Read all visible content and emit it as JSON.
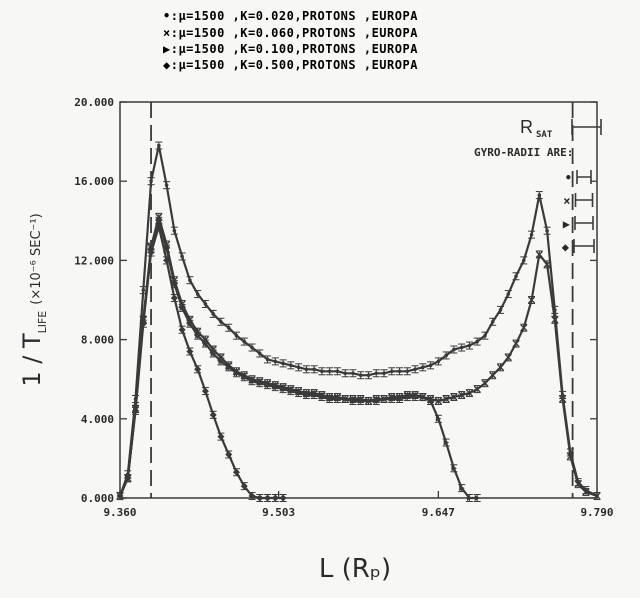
{
  "legend": [
    {
      "marker": "dot",
      "text": "•:μ=1500  ,K=0.020,PROTONS   ,EUROPA"
    },
    {
      "marker": "x",
      "text": "×:μ=1500  ,K=0.060,PROTONS   ,EUROPA"
    },
    {
      "marker": "triangle",
      "text": "▶:μ=1500  ,K=0.100,PROTONS   ,EUROPA"
    },
    {
      "marker": "diamond",
      "text": "◆:μ=1500  ,K=0.500,PROTONS   ,EUROPA"
    }
  ],
  "gyro_panel": {
    "rsat_label": "R",
    "rsat_sub": "SAT",
    "gyro_label": "GYRO-RADII ARE:",
    "markers": [
      "•",
      "×",
      "▶",
      "◆"
    ]
  },
  "colors": {
    "ink": "#3a3a3a",
    "background": "#f7f7f5"
  },
  "chart_data": {
    "type": "line",
    "xlabel": "L (Rₚ)",
    "ylabel_main": "1 / T",
    "ylabel_sub": "LIFE",
    "ylabel_units": "(×10⁻⁶ SEC⁻¹)",
    "xlim": [
      9.36,
      9.79
    ],
    "ylim": [
      0,
      20
    ],
    "xticks": [
      9.36,
      9.503,
      9.647,
      9.79
    ],
    "xtick_labels": [
      "9.360",
      "9.503",
      "9.647",
      "9.790"
    ],
    "yticks": [
      0,
      4,
      8,
      12,
      16,
      20
    ],
    "ytick_labels": [
      "0.000",
      "4.000",
      "8.000",
      "12.000",
      "16.000",
      "20.000"
    ],
    "reference_lines_x": [
      9.388,
      9.768
    ],
    "series": [
      {
        "name": "K=0.020",
        "marker": "dot",
        "x": [
          9.36,
          9.367,
          9.374,
          9.381,
          9.388,
          9.395,
          9.402,
          9.409,
          9.416,
          9.423,
          9.43,
          9.437,
          9.444,
          9.451,
          9.458,
          9.465,
          9.472,
          9.479,
          9.486,
          9.493,
          9.5,
          9.507,
          9.514,
          9.521,
          9.528,
          9.535,
          9.542,
          9.549,
          9.556,
          9.563,
          9.57,
          9.577,
          9.584,
          9.591,
          9.598,
          9.605,
          9.612,
          9.619,
          9.626,
          9.633,
          9.64,
          9.647,
          9.654,
          9.661,
          9.668,
          9.675,
          9.682,
          9.689,
          9.696,
          9.703,
          9.71,
          9.717,
          9.724,
          9.731,
          9.738,
          9.745,
          9.752,
          9.759,
          9.766,
          9.773,
          9.78,
          9.79
        ],
        "y": [
          0.1,
          1.2,
          5.0,
          10.5,
          16.0,
          17.8,
          15.8,
          13.5,
          12.2,
          11.0,
          10.3,
          9.8,
          9.3,
          8.9,
          8.6,
          8.2,
          7.9,
          7.6,
          7.3,
          7.0,
          6.9,
          6.8,
          6.7,
          6.6,
          6.5,
          6.5,
          6.4,
          6.4,
          6.4,
          6.3,
          6.3,
          6.2,
          6.2,
          6.3,
          6.3,
          6.4,
          6.4,
          6.4,
          6.5,
          6.6,
          6.7,
          6.9,
          7.2,
          7.5,
          7.6,
          7.7,
          7.9,
          8.2,
          8.9,
          9.5,
          10.3,
          11.2,
          12.0,
          13.3,
          15.3,
          13.5,
          9.5,
          5.2,
          2.3,
          0.8,
          0.4,
          0.1
        ]
      },
      {
        "name": "K=0.060",
        "marker": "x",
        "x": [
          9.36,
          9.367,
          9.374,
          9.381,
          9.388,
          9.395,
          9.402,
          9.409,
          9.416,
          9.423,
          9.43,
          9.437,
          9.444,
          9.451,
          9.458,
          9.465,
          9.472,
          9.479,
          9.486,
          9.493,
          9.5,
          9.507,
          9.514,
          9.521,
          9.528,
          9.535,
          9.542,
          9.549,
          9.556,
          9.563,
          9.57,
          9.577,
          9.584,
          9.591,
          9.598,
          9.605,
          9.612,
          9.619,
          9.626,
          9.633,
          9.64,
          9.647,
          9.654,
          9.661,
          9.668,
          9.675,
          9.682,
          9.689,
          9.696,
          9.703,
          9.71,
          9.717,
          9.724,
          9.731,
          9.738,
          9.745,
          9.752,
          9.759,
          9.766,
          9.773,
          9.78,
          9.79
        ],
        "y": [
          0.1,
          1.0,
          4.5,
          9.0,
          12.7,
          14.2,
          12.8,
          11.0,
          9.8,
          9.0,
          8.4,
          8.0,
          7.5,
          7.1,
          6.7,
          6.4,
          6.2,
          6.0,
          5.9,
          5.8,
          5.7,
          5.6,
          5.5,
          5.4,
          5.3,
          5.3,
          5.2,
          5.1,
          5.1,
          5.0,
          5.0,
          5.0,
          4.9,
          5.0,
          5.0,
          5.1,
          5.1,
          5.2,
          5.2,
          5.1,
          5.0,
          4.9,
          5.0,
          5.1,
          5.2,
          5.3,
          5.5,
          5.8,
          6.2,
          6.6,
          7.1,
          7.8,
          8.6,
          10.0,
          12.3,
          11.8,
          9.0,
          5.0,
          2.1,
          0.7,
          0.3,
          0.1
        ]
      },
      {
        "name": "K=0.100",
        "marker": "triangle",
        "x": [
          9.36,
          9.367,
          9.374,
          9.381,
          9.388,
          9.395,
          9.402,
          9.409,
          9.416,
          9.423,
          9.43,
          9.437,
          9.444,
          9.451,
          9.458,
          9.465,
          9.472,
          9.479,
          9.486,
          9.493,
          9.5,
          9.507,
          9.514,
          9.521,
          9.528,
          9.535,
          9.542,
          9.549,
          9.556,
          9.563,
          9.57,
          9.577,
          9.584,
          9.591,
          9.598,
          9.605,
          9.612,
          9.619,
          9.626,
          9.633,
          9.64,
          9.647,
          9.654,
          9.661,
          9.668,
          9.675,
          9.682
        ],
        "y": [
          0.1,
          1.0,
          4.5,
          9.0,
          12.6,
          14.0,
          12.6,
          10.8,
          9.6,
          8.8,
          8.2,
          7.8,
          7.3,
          6.9,
          6.6,
          6.3,
          6.1,
          5.9,
          5.8,
          5.7,
          5.6,
          5.5,
          5.4,
          5.3,
          5.2,
          5.2,
          5.1,
          5.0,
          5.0,
          5.0,
          4.9,
          4.9,
          4.9,
          4.9,
          5.0,
          5.0,
          5.0,
          5.1,
          5.1,
          5.1,
          4.9,
          4.0,
          2.8,
          1.5,
          0.5,
          0.0,
          0.0
        ]
      },
      {
        "name": "K=0.500",
        "marker": "diamond",
        "x": [
          9.36,
          9.367,
          9.374,
          9.381,
          9.388,
          9.395,
          9.402,
          9.409,
          9.416,
          9.423,
          9.43,
          9.437,
          9.444,
          9.451,
          9.458,
          9.465,
          9.472,
          9.479,
          9.486,
          9.493,
          9.5,
          9.507
        ],
        "y": [
          0.1,
          1.0,
          4.4,
          8.8,
          12.4,
          13.7,
          12.0,
          10.1,
          8.5,
          7.4,
          6.5,
          5.4,
          4.2,
          3.1,
          2.2,
          1.3,
          0.6,
          0.1,
          0.0,
          0.0,
          0.0,
          0.0
        ]
      }
    ]
  }
}
